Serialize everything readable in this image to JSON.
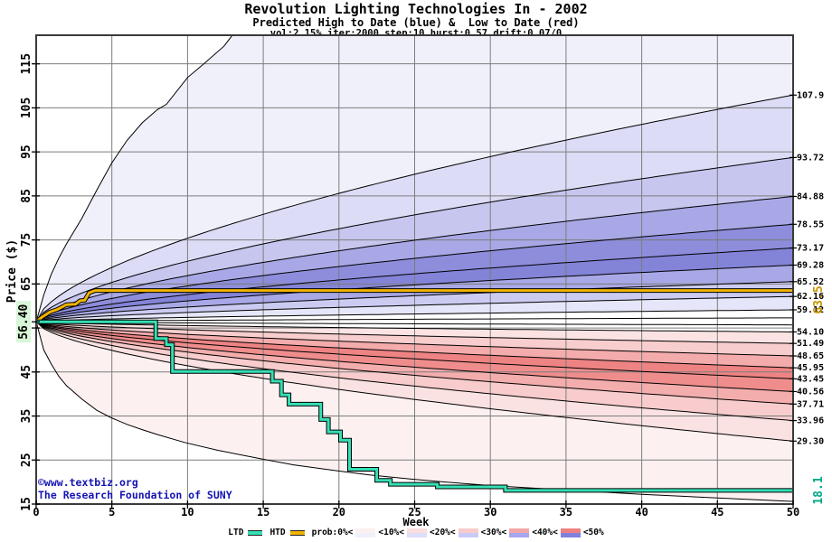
{
  "title": {
    "line1": "Revolution Lighting Technologies In - 2002",
    "line2": "Predicted High to Date (blue) &  Low to Date (red)",
    "line3": "vol:2.15% iter:2000 step:10 hurst:0.57 drift:0.07/0"
  },
  "watermark": {
    "line1": "©www.textbiz.org",
    "line2": "The Research Foundation of SUNY"
  },
  "axes": {
    "y_label": "Price ($)",
    "x_label": "Week",
    "y_ticks": [
      15,
      25,
      35,
      45,
      55,
      65,
      75,
      85,
      95,
      105,
      115
    ],
    "x_ticks": [
      0,
      5,
      10,
      15,
      20,
      25,
      30,
      35,
      40,
      45,
      50
    ],
    "start_price_label": "56.40"
  },
  "annotations": {
    "htd_final": "63.5",
    "ltd_final": "18.1"
  },
  "colors": {
    "htd_line": "#f0b400",
    "ltd_line": "#35e0b5",
    "grid": "#7d7d7d",
    "axis_border": "#3a3a3a",
    "boundary_line": "#000000",
    "watermark_text": "#1414b4",
    "htd_label": "#c89600",
    "ltd_label": "#00aa88",
    "start_label_bg": "#d8f6d8"
  },
  "legend": [
    {
      "kind": "line",
      "label": "LTD",
      "color": "#35e0b5"
    },
    {
      "kind": "line",
      "label": "HTD",
      "color": "#f0b400"
    },
    {
      "kind": "text",
      "label": "prob:0%<"
    },
    {
      "kind": "swatch",
      "top": "#fcf0f0",
      "bottom": "#f0f0fc"
    },
    {
      "kind": "text",
      "label": "<10%<"
    },
    {
      "kind": "swatch",
      "top": "#fbdede",
      "bottom": "#dedefb"
    },
    {
      "kind": "text",
      "label": "<20%<"
    },
    {
      "kind": "swatch",
      "top": "#f8caca",
      "bottom": "#cacaf8"
    },
    {
      "kind": "text",
      "label": "<30%<"
    },
    {
      "kind": "swatch",
      "top": "#f3a6a6",
      "bottom": "#a6a6ef"
    },
    {
      "kind": "text",
      "label": "<40%<"
    },
    {
      "kind": "swatch",
      "top": "#ee8181",
      "bottom": "#8181dd"
    },
    {
      "kind": "text",
      "label": "<50%"
    }
  ],
  "chart_data": {
    "type": "area",
    "title": "Revolution Lighting Technologies In - 2002",
    "xlabel": "Week",
    "ylabel": "Price ($)",
    "x_range": [
      0,
      50
    ],
    "y_range": [
      15,
      121.5
    ],
    "grid": true,
    "start": {
      "week": 0,
      "price": 56.4
    },
    "fan_exponent": 0.62,
    "blue_high_bands": {
      "end_values": [
        57.3,
        59.12,
        62.16,
        65.52,
        69.28,
        73.17,
        78.55,
        84.88,
        93.72,
        107.9
      ],
      "band_colors": [
        "#ffffff",
        "#e6e6fa",
        "#cbcbf2",
        "#a8a8e6",
        "#8383d8",
        "#8d8ddc",
        "#a8a8e6",
        "#c6c6ef",
        "#dcdcf6",
        "#f0f0fb"
      ],
      "envelope": [
        [
          0,
          56.4
        ],
        [
          0.5,
          62.5
        ],
        [
          1,
          67.2
        ],
        [
          1.5,
          70.9
        ],
        [
          2,
          74.1
        ],
        [
          3,
          79.8
        ],
        [
          4,
          86.3
        ],
        [
          5,
          92.5
        ],
        [
          6,
          97.6
        ],
        [
          7,
          101.6
        ],
        [
          8,
          104.6
        ],
        [
          8.6,
          105.8
        ],
        [
          10,
          111.9
        ],
        [
          11,
          114.8
        ],
        [
          12.4,
          119.0
        ],
        [
          13.4,
          123.5
        ],
        [
          14,
          135
        ],
        [
          50,
          135
        ]
      ]
    },
    "red_low_bands": {
      "end_values": [
        55.7,
        54.1,
        51.49,
        48.65,
        45.95,
        43.45,
        40.56,
        37.71,
        33.96,
        29.3
      ],
      "band_colors": [
        "#ffffff",
        "#fbe3e3",
        "#f8cdcd",
        "#f4abab",
        "#ee8383",
        "#ef8d8d",
        "#f3adad",
        "#f8cccc",
        "#fbe2e2",
        "#fdf0f0"
      ],
      "envelope": [
        [
          0,
          56.4
        ],
        [
          0.5,
          50
        ],
        [
          1,
          46.8
        ],
        [
          1.5,
          44
        ],
        [
          2,
          41.9
        ],
        [
          3,
          38.9
        ],
        [
          4,
          36.3
        ],
        [
          4.9,
          34.7
        ],
        [
          6,
          33.1
        ],
        [
          7,
          31.9
        ],
        [
          8,
          30.8
        ],
        [
          9.8,
          29.0
        ],
        [
          12,
          27.2
        ],
        [
          14.8,
          25.3
        ],
        [
          17,
          23.9
        ],
        [
          19.8,
          22.6
        ],
        [
          22,
          21.6
        ],
        [
          24.7,
          20.7
        ],
        [
          27,
          20.0
        ],
        [
          30,
          19.2
        ],
        [
          33,
          18.6
        ],
        [
          36,
          18.0
        ],
        [
          40,
          17.2
        ],
        [
          45,
          16.4
        ],
        [
          50,
          15.6
        ]
      ]
    },
    "right_labels": [
      {
        "text": "107.9",
        "value": 107.9
      },
      {
        "text": "93.72",
        "value": 93.72
      },
      {
        "text": "84.88",
        "value": 84.88
      },
      {
        "text": "78.55",
        "value": 78.55
      },
      {
        "text": "73.17",
        "value": 73.17
      },
      {
        "text": "69.28",
        "value": 69.28
      },
      {
        "text": "65.52",
        "value": 65.52
      },
      {
        "text": "62.16",
        "value": 62.16
      },
      {
        "text": "59.12",
        "value": 59.12
      },
      {
        "text": "54.10",
        "value": 54.1
      },
      {
        "text": "51.49",
        "value": 51.49
      },
      {
        "text": "48.65",
        "value": 48.65
      },
      {
        "text": "45.95",
        "value": 45.95
      },
      {
        "text": "43.45",
        "value": 43.45
      },
      {
        "text": "40.56",
        "value": 40.56
      },
      {
        "text": "37.71",
        "value": 37.71
      },
      {
        "text": "33.96",
        "value": 33.96
      },
      {
        "text": "29.30",
        "value": 29.3
      }
    ],
    "htd_series": [
      [
        0,
        56.4
      ],
      [
        0.4,
        57.5
      ],
      [
        0.9,
        58.6
      ],
      [
        1.4,
        59.2
      ],
      [
        2.0,
        60.3
      ],
      [
        2.6,
        60.4
      ],
      [
        2.9,
        61.2
      ],
      [
        3.2,
        61.3
      ],
      [
        3.5,
        63.0
      ],
      [
        3.9,
        63.5
      ],
      [
        50,
        63.5
      ]
    ],
    "ltd_series": [
      [
        0,
        56.4
      ],
      [
        7.9,
        56.4
      ],
      [
        7.9,
        52.6
      ],
      [
        8.6,
        52.6
      ],
      [
        8.6,
        51.2
      ],
      [
        9.0,
        51.2
      ],
      [
        9.0,
        45.1
      ],
      [
        15.6,
        45.1
      ],
      [
        15.6,
        42.9
      ],
      [
        16.2,
        42.9
      ],
      [
        16.2,
        39.8
      ],
      [
        16.7,
        39.8
      ],
      [
        16.7,
        37.7
      ],
      [
        18.8,
        37.7
      ],
      [
        18.8,
        34.2
      ],
      [
        19.3,
        34.2
      ],
      [
        19.3,
        31.4
      ],
      [
        20.1,
        31.4
      ],
      [
        20.1,
        29.5
      ],
      [
        20.7,
        29.5
      ],
      [
        20.7,
        22.9
      ],
      [
        22.5,
        22.9
      ],
      [
        22.5,
        20.4
      ],
      [
        23.4,
        20.4
      ],
      [
        23.4,
        19.5
      ],
      [
        26.5,
        19.5
      ],
      [
        26.5,
        18.9
      ],
      [
        31.0,
        18.9
      ],
      [
        31.0,
        18.1
      ],
      [
        50,
        18.1
      ]
    ]
  }
}
